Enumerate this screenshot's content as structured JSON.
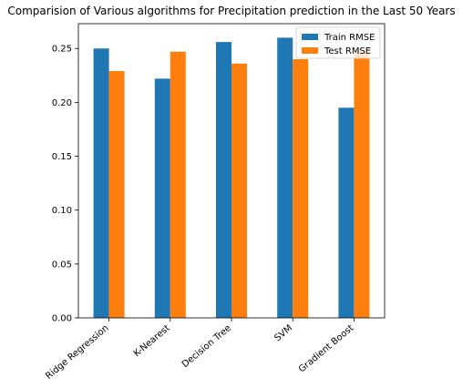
{
  "chart_data": {
    "type": "bar",
    "title": "Comparision of Various algorithms for Precipitation prediction in the Last 50 Years",
    "xlabel": "",
    "ylabel": "",
    "categories": [
      "Ridge Regression",
      "K-Nearest",
      "Decision Tree",
      "SVM",
      "Gradient Boost"
    ],
    "series": [
      {
        "name": "Train RMSE",
        "color": "#1f77b4",
        "values": [
          0.25,
          0.222,
          0.256,
          0.26,
          0.195
        ]
      },
      {
        "name": "Test RMSE",
        "color": "#ff7f0e",
        "values": [
          0.229,
          0.247,
          0.236,
          0.24,
          0.247
        ]
      }
    ],
    "ylim": [
      0,
      0.273
    ],
    "yticks": [
      0.0,
      0.05,
      0.1,
      0.15,
      0.2,
      0.25
    ],
    "ytick_labels": [
      "0.00",
      "0.05",
      "0.10",
      "0.15",
      "0.20",
      "0.25"
    ],
    "x_tick_rotation_deg": 40,
    "grid": false,
    "legend_position": "top-right"
  }
}
